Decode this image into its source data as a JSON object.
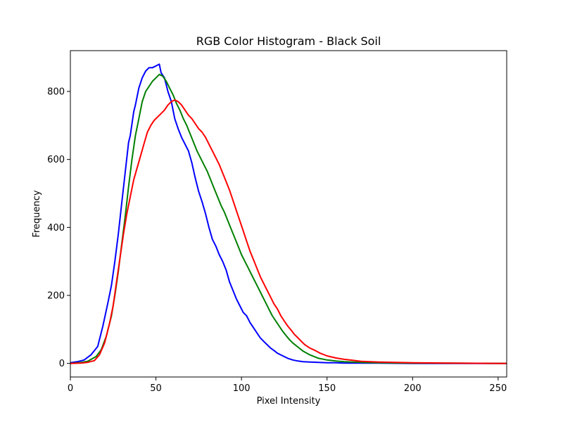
{
  "chart_data": {
    "type": "line",
    "title": "RGB Color Histogram - Black Soil",
    "xlabel": "Pixel Intensity",
    "ylabel": "Frequency",
    "xlim": [
      0,
      255
    ],
    "ylim": [
      -40,
      920
    ],
    "xticks": [
      0,
      50,
      100,
      150,
      200,
      250
    ],
    "yticks": [
      0,
      200,
      400,
      600,
      800
    ],
    "grid": false,
    "legend": "none",
    "series": [
      {
        "color": "#0000ff",
        "x": [
          0,
          4,
          8,
          12,
          16,
          19,
          22,
          24,
          26,
          28,
          30,
          32,
          34,
          35,
          37,
          38,
          40,
          42,
          44,
          46,
          48,
          50,
          52,
          53,
          55,
          57,
          59,
          61,
          63,
          65,
          67,
          69,
          71,
          73,
          75,
          77,
          79,
          81,
          83,
          85,
          87,
          89,
          91,
          93,
          95,
          97,
          99,
          101,
          103,
          105,
          107,
          109,
          111,
          113,
          115,
          117,
          119,
          121,
          123,
          125,
          127,
          130,
          133,
          136,
          140,
          145,
          150,
          155,
          160,
          170,
          180,
          200,
          220,
          255
        ],
        "y": [
          2,
          5,
          10,
          25,
          50,
          110,
          180,
          230,
          300,
          380,
          470,
          560,
          650,
          670,
          740,
          760,
          810,
          840,
          860,
          870,
          870,
          875,
          880,
          855,
          840,
          800,
          770,
          720,
          690,
          665,
          645,
          625,
          590,
          545,
          505,
          475,
          440,
          400,
          365,
          345,
          320,
          300,
          275,
          240,
          215,
          190,
          170,
          150,
          140,
          120,
          105,
          90,
          75,
          65,
          55,
          45,
          38,
          30,
          25,
          20,
          15,
          10,
          7,
          5,
          4,
          3,
          2,
          2,
          1,
          1,
          1,
          0,
          0,
          0
        ]
      },
      {
        "color": "#008000",
        "x": [
          0,
          5,
          10,
          15,
          18,
          21,
          24,
          26,
          28,
          30,
          32,
          34,
          36,
          38,
          40,
          42,
          44,
          46,
          48,
          50,
          52,
          54,
          56,
          58,
          60,
          62,
          64,
          66,
          68,
          70,
          72,
          74,
          76,
          78,
          80,
          82,
          84,
          86,
          88,
          90,
          92,
          94,
          96,
          98,
          100,
          102,
          104,
          106,
          108,
          110,
          112,
          114,
          116,
          118,
          120,
          122,
          124,
          126,
          128,
          130,
          133,
          136,
          140,
          145,
          150,
          155,
          160,
          170,
          180,
          200,
          220,
          255
        ],
        "y": [
          0,
          2,
          6,
          20,
          40,
          80,
          140,
          200,
          270,
          350,
          430,
          520,
          600,
          670,
          720,
          770,
          800,
          815,
          830,
          840,
          850,
          845,
          830,
          810,
          790,
          765,
          745,
          720,
          700,
          675,
          650,
          625,
          605,
          585,
          565,
          540,
          515,
          490,
          465,
          445,
          420,
          395,
          370,
          345,
          320,
          300,
          280,
          260,
          240,
          220,
          200,
          180,
          160,
          140,
          125,
          110,
          95,
          82,
          70,
          60,
          48,
          36,
          25,
          15,
          10,
          7,
          5,
          3,
          2,
          1,
          1,
          0
        ]
      },
      {
        "color": "#ff0000",
        "x": [
          0,
          6,
          10,
          14,
          17,
          20,
          23,
          25,
          27,
          29,
          31,
          33,
          35,
          37,
          39,
          41,
          43,
          45,
          47,
          49,
          51,
          53,
          55,
          57,
          59,
          61,
          63,
          65,
          67,
          69,
          71,
          73,
          75,
          77,
          79,
          81,
          83,
          85,
          87,
          89,
          91,
          93,
          95,
          97,
          99,
          101,
          103,
          105,
          107,
          109,
          111,
          113,
          115,
          117,
          119,
          121,
          123,
          125,
          127,
          129,
          131,
          133,
          135,
          137,
          140,
          143,
          146,
          150,
          155,
          160,
          165,
          170,
          180,
          200,
          220,
          255
        ],
        "y": [
          0,
          1,
          3,
          8,
          25,
          60,
          120,
          170,
          240,
          310,
          380,
          440,
          490,
          540,
          575,
          610,
          645,
          680,
          700,
          715,
          725,
          735,
          745,
          760,
          770,
          775,
          770,
          760,
          745,
          730,
          720,
          705,
          690,
          680,
          665,
          645,
          625,
          605,
          585,
          560,
          535,
          510,
          480,
          450,
          420,
          390,
          360,
          330,
          305,
          280,
          255,
          235,
          215,
          195,
          175,
          160,
          140,
          125,
          110,
          98,
          85,
          75,
          65,
          55,
          45,
          38,
          30,
          22,
          16,
          12,
          9,
          6,
          4,
          2,
          1,
          0
        ]
      }
    ]
  }
}
